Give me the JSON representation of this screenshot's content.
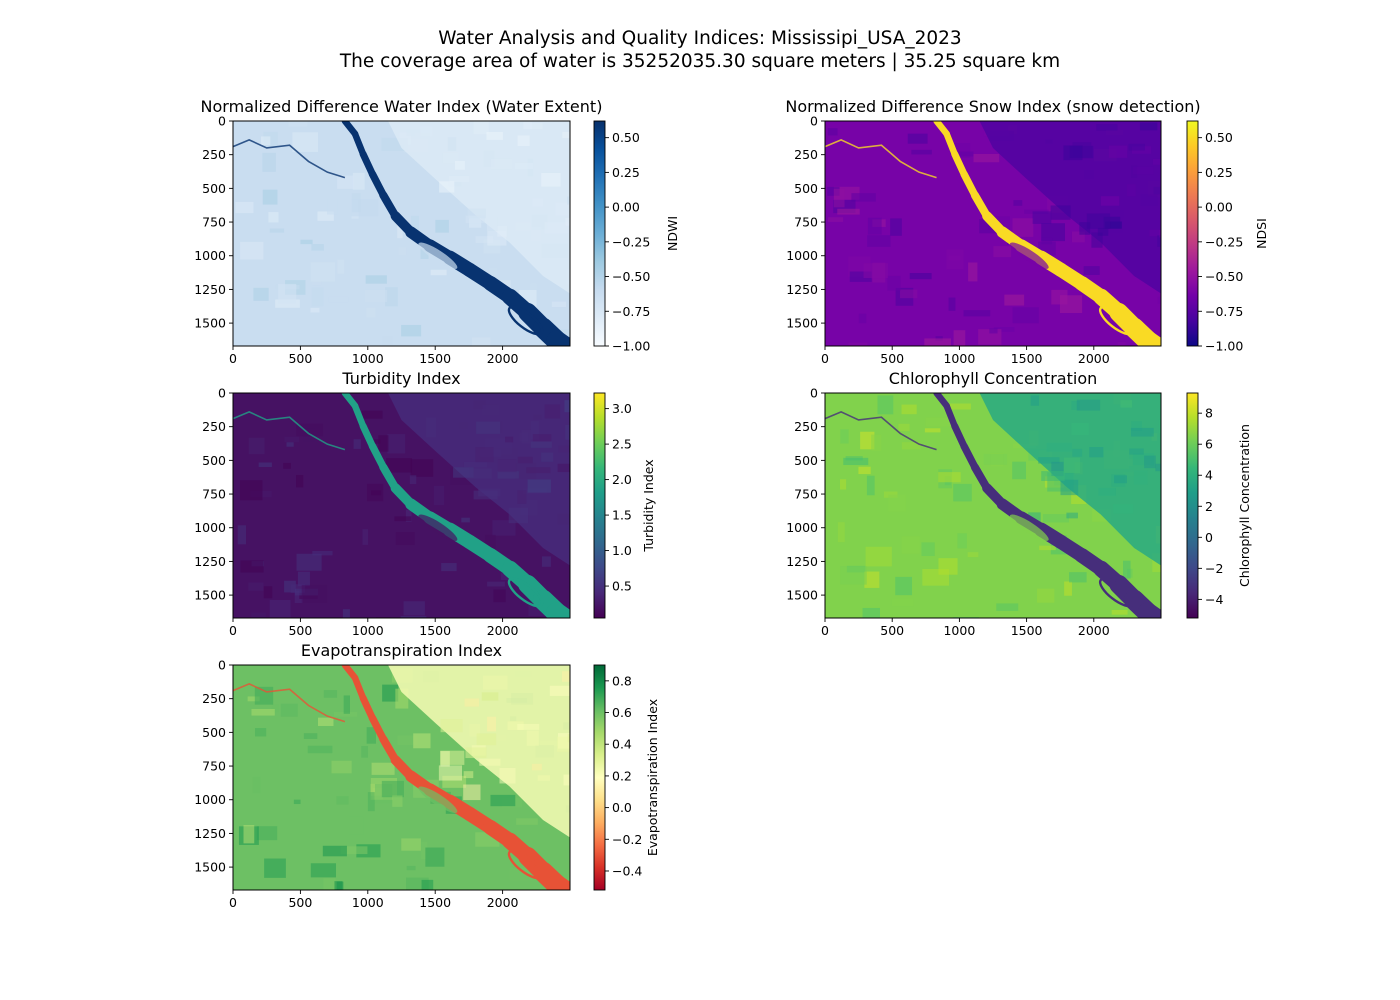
{
  "figure": {
    "title_line1": "Water Analysis and Quality Indices: Mississipi_USA_2023",
    "title_line2": "The coverage area of water is 35252035.30 square meters | 35.25 square km"
  },
  "chart_data": [
    {
      "type": "heatmap",
      "id": "ndwi",
      "title": "Normalized Difference Water Index (Water Extent)",
      "colorbar_label": "NDWI",
      "colormap": "Blues",
      "colormap_stops": [
        "#f7fbff",
        "#deebf7",
        "#c6dbef",
        "#9ecae1",
        "#6baed6",
        "#4292c6",
        "#2171b5",
        "#08519c",
        "#08306b"
      ],
      "value_range": [
        -1.0,
        0.62
      ],
      "colorbar_ticks": [
        "0.50",
        "0.25",
        "0.00",
        "−0.25",
        "−0.50",
        "−0.75",
        "−1.00"
      ],
      "colorbar_tick_values": [
        0.5,
        0.25,
        0.0,
        -0.25,
        -0.5,
        -0.75,
        -1.0
      ],
      "xlim": [
        0,
        2500
      ],
      "ylim": [
        1670,
        0
      ],
      "x_ticks": [
        "0",
        "500",
        "1000",
        "1500",
        "2000"
      ],
      "x_tick_values": [
        0,
        500,
        1000,
        1500,
        2000
      ],
      "y_ticks": [
        "0",
        "250",
        "500",
        "750",
        "1000",
        "1250",
        "1500"
      ],
      "y_tick_values": [
        0,
        250,
        500,
        750,
        1000,
        1250,
        1500
      ],
      "background_value": -0.62,
      "east_value": -0.78,
      "river_value": 0.6
    },
    {
      "type": "heatmap",
      "id": "ndsi",
      "title": "Normalized Difference Snow Index (snow detection)",
      "colorbar_label": "NDSI",
      "colormap": "plasma",
      "colormap_stops": [
        "#0d0887",
        "#46039f",
        "#7201a8",
        "#9c179e",
        "#bd3786",
        "#d8576b",
        "#ed7953",
        "#fb9f3a",
        "#fdca26",
        "#f0f921"
      ],
      "value_range": [
        -1.0,
        0.62
      ],
      "colorbar_ticks": [
        "0.50",
        "0.25",
        "0.00",
        "−0.25",
        "−0.50",
        "−0.75",
        "−1.00"
      ],
      "colorbar_tick_values": [
        0.5,
        0.25,
        0.0,
        -0.25,
        -0.5,
        -0.75,
        -1.0
      ],
      "xlim": [
        0,
        2500
      ],
      "ylim": [
        1670,
        0
      ],
      "x_ticks": [
        "0",
        "500",
        "1000",
        "1500",
        "2000"
      ],
      "x_tick_values": [
        0,
        500,
        1000,
        1500,
        2000
      ],
      "y_ticks": [
        "0",
        "250",
        "500",
        "750",
        "1000",
        "1250",
        "1500"
      ],
      "y_tick_values": [
        0,
        250,
        500,
        750,
        1000,
        1250,
        1500
      ],
      "background_value": -0.62,
      "east_value": -0.78,
      "river_value": 0.5
    },
    {
      "type": "heatmap",
      "id": "turbidity",
      "title": "Turbidity Index",
      "colorbar_label": "Turbidity Index",
      "colormap": "viridis",
      "colormap_stops": [
        "#440154",
        "#482878",
        "#3e4989",
        "#31688e",
        "#26828e",
        "#1f9e89",
        "#35b779",
        "#6ece58",
        "#b5de2b",
        "#fde725"
      ],
      "value_range": [
        0.05,
        3.22
      ],
      "colorbar_ticks": [
        "3.0",
        "2.5",
        "2.0",
        "1.5",
        "1.0",
        "0.5"
      ],
      "colorbar_tick_values": [
        3.0,
        2.5,
        2.0,
        1.5,
        1.0,
        0.5
      ],
      "xlim": [
        0,
        2500
      ],
      "ylim": [
        1670,
        0
      ],
      "x_ticks": [
        "0",
        "500",
        "1000",
        "1500",
        "2000"
      ],
      "x_tick_values": [
        0,
        500,
        1000,
        1500,
        2000
      ],
      "y_ticks": [
        "0",
        "250",
        "500",
        "750",
        "1000",
        "1250",
        "1500"
      ],
      "y_tick_values": [
        0,
        250,
        500,
        750,
        1000,
        1250,
        1500
      ],
      "background_value": 0.2,
      "east_value": 0.45,
      "river_value": 1.85
    },
    {
      "type": "heatmap",
      "id": "chlorophyll",
      "title": "Chlorophyll Concentration",
      "colorbar_label": "Chlorophyll Concentration",
      "colormap": "viridis",
      "colormap_stops": [
        "#440154",
        "#482878",
        "#3e4989",
        "#31688e",
        "#26828e",
        "#1f9e89",
        "#35b779",
        "#6ece58",
        "#b5de2b",
        "#fde725"
      ],
      "value_range": [
        -5.2,
        9.3
      ],
      "colorbar_ticks": [
        "8",
        "6",
        "4",
        "2",
        "0",
        "−2",
        "−4"
      ],
      "colorbar_tick_values": [
        8,
        6,
        4,
        2,
        0,
        -2,
        -4
      ],
      "xlim": [
        0,
        2500
      ],
      "ylim": [
        1670,
        0
      ],
      "x_ticks": [
        "0",
        "500",
        "1000",
        "1500",
        "2000"
      ],
      "x_tick_values": [
        0,
        500,
        1000,
        1500,
        2000
      ],
      "y_ticks": [
        "0",
        "250",
        "500",
        "750",
        "1000",
        "1250",
        "1500"
      ],
      "y_tick_values": [
        0,
        250,
        500,
        750,
        1000,
        1250,
        1500
      ],
      "background_value": 6.5,
      "east_value": 3.6,
      "river_value": -3.3
    },
    {
      "type": "heatmap",
      "id": "evapotranspiration",
      "title": "Evapotranspiration Index",
      "colorbar_label": "Evapotranspiration Index",
      "colormap": "RdYlGn",
      "colormap_stops": [
        "#a50026",
        "#d73027",
        "#f46d43",
        "#fdae61",
        "#fee08b",
        "#ffffbf",
        "#d9ef8b",
        "#a6d96a",
        "#66bd63",
        "#1a9850",
        "#006837"
      ],
      "value_range": [
        -0.52,
        0.9
      ],
      "colorbar_ticks": [
        "0.8",
        "0.6",
        "0.4",
        "0.2",
        "0.0",
        "−0.2",
        "−0.4"
      ],
      "colorbar_tick_values": [
        0.8,
        0.6,
        0.4,
        0.2,
        0.0,
        -0.2,
        -0.4
      ],
      "xlim": [
        0,
        2500
      ],
      "ylim": [
        1670,
        0
      ],
      "x_ticks": [
        "0",
        "500",
        "1000",
        "1500",
        "2000"
      ],
      "x_tick_values": [
        0,
        500,
        1000,
        1500,
        2000
      ],
      "y_ticks": [
        "0",
        "250",
        "500",
        "750",
        "1000",
        "1250",
        "1500"
      ],
      "y_tick_values": [
        0,
        250,
        500,
        750,
        1000,
        1250,
        1500
      ],
      "background_value": 0.6,
      "east_value": 0.22,
      "river_value": -0.3
    }
  ]
}
